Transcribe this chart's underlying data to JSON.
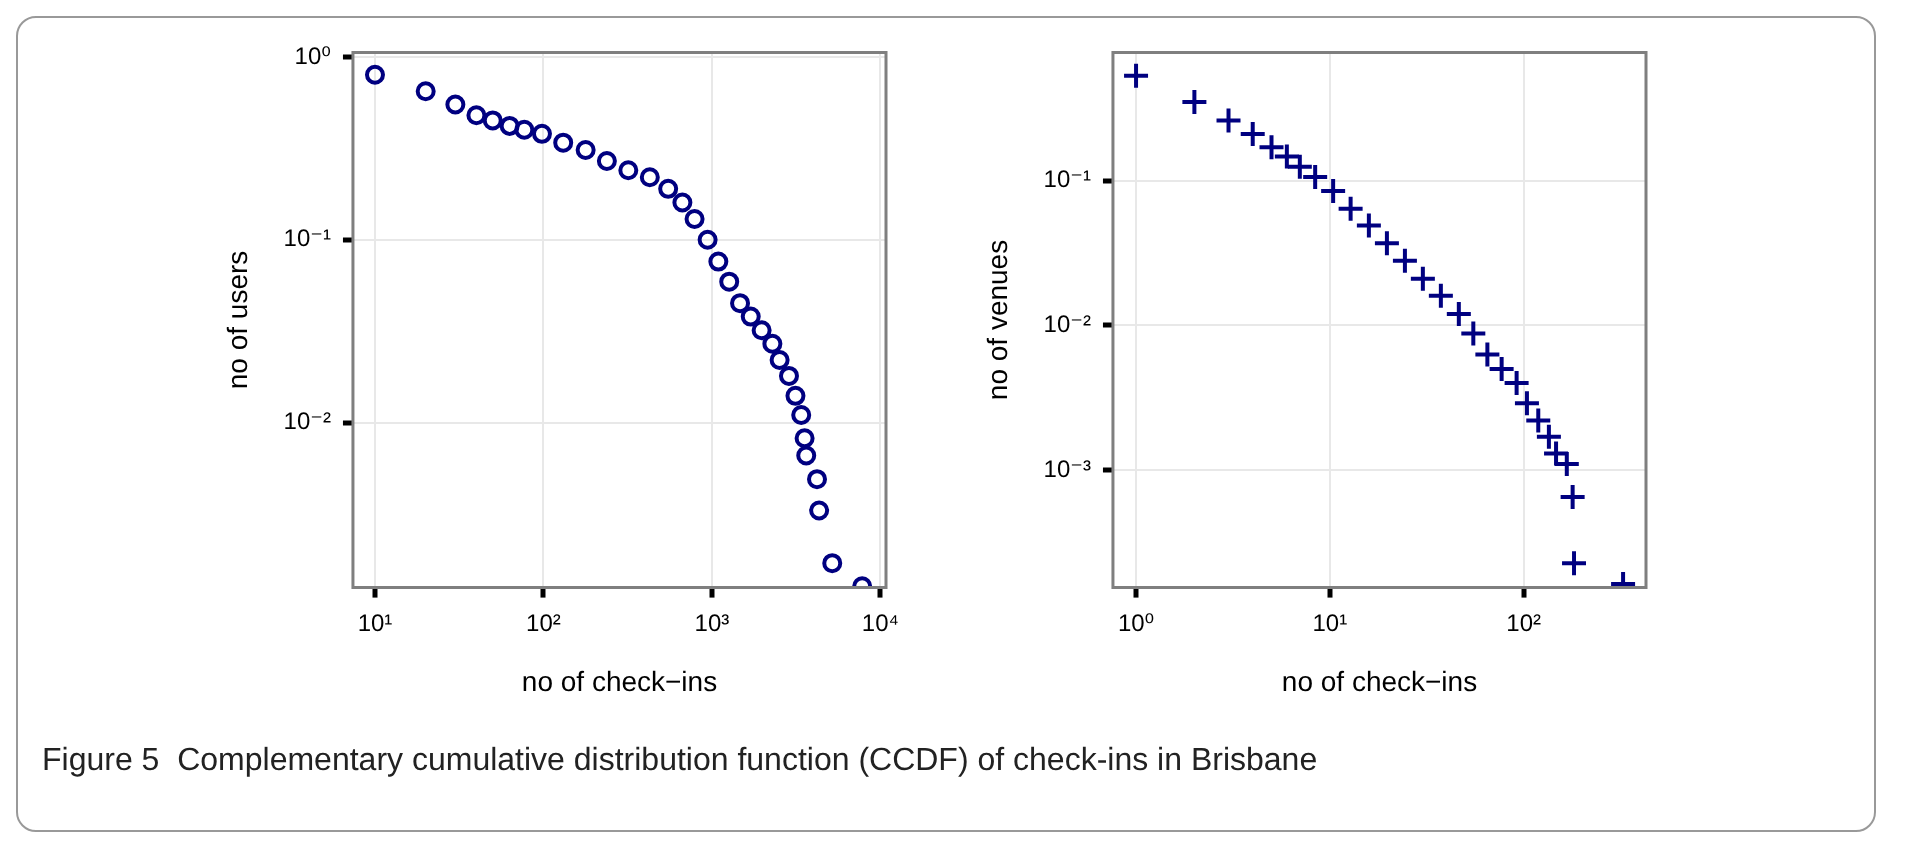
{
  "chart_data": [
    {
      "type": "scatter",
      "xlabel": "no of check−ins",
      "ylabel": "no of users",
      "log": "xy",
      "grid": true,
      "marker": "circle",
      "color": "#000080",
      "xlim": [
        7.4,
        10800
      ],
      "ylim": [
        0.00125,
        1.06
      ],
      "xticks": [
        {
          "value": 10,
          "label": "10¹"
        },
        {
          "value": 100,
          "label": "10²"
        },
        {
          "value": 1000,
          "label": "10³"
        },
        {
          "value": 10000,
          "label": "10⁴"
        }
      ],
      "yticks": [
        {
          "value": 1,
          "label": "10⁰"
        },
        {
          "value": 0.1,
          "label": "10⁻¹"
        },
        {
          "value": 0.01,
          "label": "10⁻²"
        }
      ],
      "x": [
        10,
        20,
        30,
        40,
        50,
        63,
        77,
        98,
        131,
        178,
        238,
        319,
        428,
        550,
        668,
        789,
        943,
        1092,
        1267,
        1469,
        1700,
        1973,
        2286,
        2523,
        2868,
        3133,
        3390,
        3550,
        3630,
        4206,
        4330,
        5180,
        7800
      ],
      "values": [
        0.8,
        0.65,
        0.55,
        0.48,
        0.45,
        0.42,
        0.4,
        0.38,
        0.34,
        0.31,
        0.27,
        0.24,
        0.22,
        0.19,
        0.16,
        0.13,
        0.1,
        0.076,
        0.059,
        0.045,
        0.038,
        0.032,
        0.027,
        0.022,
        0.018,
        0.014,
        0.011,
        0.0082,
        0.0066,
        0.0049,
        0.0033,
        0.0017,
        0.00127
      ]
    },
    {
      "type": "scatter",
      "xlabel": "no of check−ins",
      "ylabel": "no of venues",
      "log": "xy",
      "grid": true,
      "marker": "cross",
      "color": "#000080",
      "xlim": [
        0.76,
        428
      ],
      "ylim": [
        0.000154,
        0.77
      ],
      "xticks": [
        {
          "value": 1,
          "label": "10⁰"
        },
        {
          "value": 10,
          "label": "10¹"
        },
        {
          "value": 100,
          "label": "10²"
        }
      ],
      "yticks": [
        {
          "value": 0.1,
          "label": "10⁻¹"
        },
        {
          "value": 0.01,
          "label": "10⁻²"
        },
        {
          "value": 0.001,
          "label": "10⁻³"
        }
      ],
      "x": [
        1,
        2,
        3,
        4,
        5,
        6,
        7,
        8.4,
        10.4,
        12.8,
        15.9,
        19.7,
        24.4,
        30.2,
        37.4,
        46.3,
        55,
        65,
        77,
        92,
        104,
        119,
        135,
        147,
        167,
        179,
        182,
        326
      ],
      "values": [
        0.53,
        0.35,
        0.26,
        0.21,
        0.17,
        0.147,
        0.125,
        0.106,
        0.085,
        0.064,
        0.049,
        0.037,
        0.028,
        0.021,
        0.016,
        0.012,
        0.0088,
        0.0063,
        0.005,
        0.004,
        0.0029,
        0.0022,
        0.0017,
        0.0013,
        0.0011,
        0.00065,
        0.000227,
        0.000163
      ],
      "annotations": [
        "Figure 5  Complementary cumulative distribution function (CCDF) of check-ins in Brisbane"
      ]
    }
  ]
}
